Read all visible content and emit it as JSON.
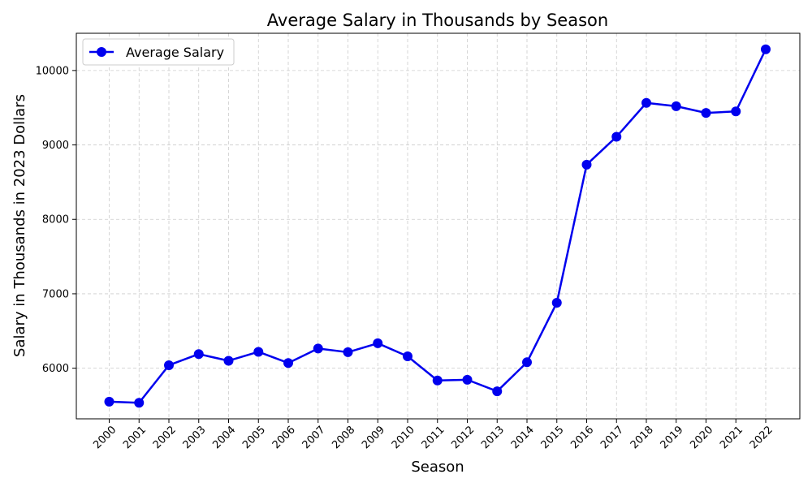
{
  "chart_data": {
    "type": "line",
    "title": "Average Salary in Thousands by Season",
    "xlabel": "Season",
    "ylabel": "Salary in Thousands in 2023 Dollars",
    "x": [
      "2000",
      "2001",
      "2002",
      "2003",
      "2004",
      "2005",
      "2006",
      "2007",
      "2008",
      "2009",
      "2010",
      "2011",
      "2012",
      "2013",
      "2014",
      "2015",
      "2016",
      "2017",
      "2018",
      "2019",
      "2020",
      "2021",
      "2022"
    ],
    "series": [
      {
        "name": "Average Salary",
        "color": "#0000ee",
        "values": [
          5550,
          5535,
          6040,
          6190,
          6100,
          6220,
          6070,
          6265,
          6215,
          6335,
          6160,
          5835,
          5845,
          5690,
          6080,
          6880,
          8735,
          9110,
          9565,
          9520,
          9430,
          9450,
          10285
        ]
      }
    ],
    "ylim": [
      5320,
      10500
    ],
    "yticks": [
      6000,
      7000,
      8000,
      9000,
      10000
    ],
    "grid": true,
    "legend": "top-left"
  }
}
